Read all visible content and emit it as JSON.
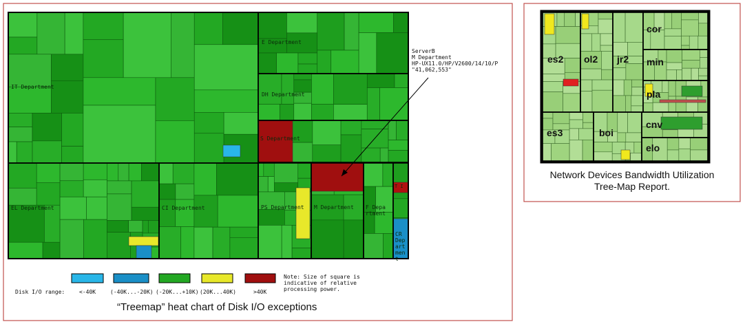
{
  "left_panel": {
    "departments": [
      "IT Department",
      "E Department",
      "DH Department",
      "S Department",
      "EL Department",
      "CI Department",
      "PS Department",
      "M Department",
      "F Department",
      "CR Department",
      "T I"
    ],
    "callout": {
      "server": "ServerB",
      "department": "M Department",
      "model": "HP-UX11.0/HP/V2600/14/10/P",
      "value": "\"41,062,553\""
    },
    "legend": {
      "title": "Disk I/O range:",
      "ranges": [
        "<-40K",
        "(-40K...-20K)",
        "(-20K...+10K)",
        "(20K...40K)",
        ">40K"
      ],
      "note": "Note: Size of square is indicative of relative processing power."
    },
    "caption": "“Treemap” heat chart of Disk I/O exceptions"
  },
  "right_panel": {
    "nodes": [
      "es2",
      "ol2",
      "jr2",
      "cor",
      "min",
      "pla",
      "es3",
      "boi",
      "cnv",
      "elo"
    ],
    "caption_lines": [
      "Network Devices Bandwidth Utilization",
      "Tree-Map Report."
    ]
  }
}
